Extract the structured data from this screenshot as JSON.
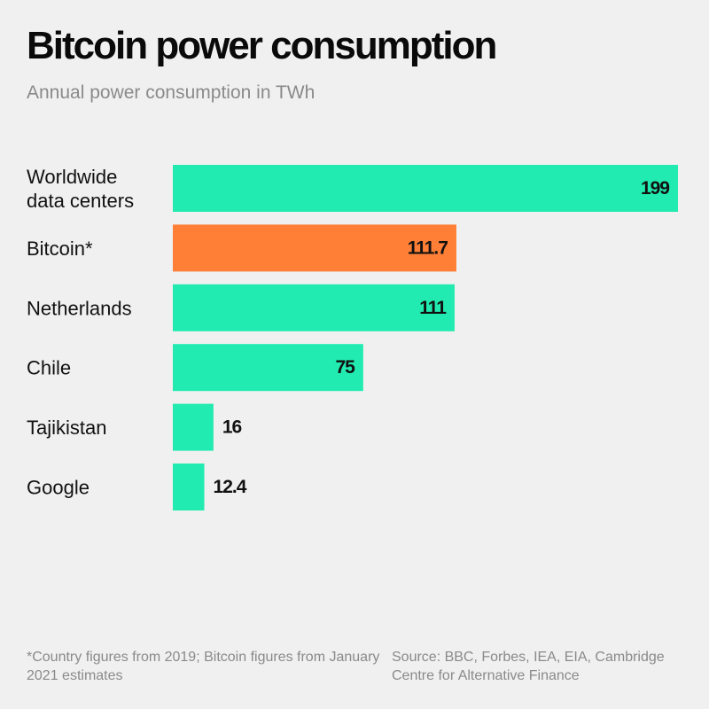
{
  "title": "Bitcoin power consumption",
  "subtitle": "Annual power consumption in TWh",
  "footnote": "*Country figures from 2019; Bitcoin figures from January 2021 estimates",
  "source": "Source: BBC, Forbes, IEA, EIA, Cambridge Centre for Alternative Finance",
  "colors": {
    "default_bar": "#21ebb0",
    "highlight_bar": "#ff7f37",
    "background": "#f0f0f0",
    "text": "#111111",
    "muted_text": "#8a8a8a"
  },
  "chart_data": {
    "type": "bar",
    "orientation": "horizontal",
    "title": "Bitcoin power consumption",
    "subtitle": "Annual power consumption in TWh",
    "categories": [
      [
        "Worldwide",
        "data centers"
      ],
      [
        "Bitcoin*"
      ],
      [
        "Netherlands"
      ],
      [
        "Chile"
      ],
      [
        "Tajikistan"
      ],
      [
        "Google"
      ]
    ],
    "values": [
      199,
      111.7,
      111,
      75,
      16,
      12.4
    ],
    "value_labels": [
      "199",
      "111.7",
      "111",
      "75",
      "16",
      "12.4"
    ],
    "highlight": [
      false,
      true,
      false,
      false,
      false,
      false
    ],
    "xlim": [
      0,
      199
    ],
    "grid": false,
    "legend": "none"
  }
}
